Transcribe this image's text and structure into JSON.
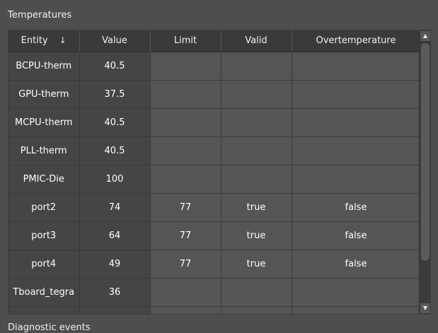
{
  "panel": {
    "title": "Temperatures"
  },
  "table": {
    "columns": [
      "Entity",
      "Value",
      "Limit",
      "Valid",
      "Overtemperature"
    ],
    "rows": [
      {
        "entity": "BCPU-therm",
        "value": "40.5",
        "limit": "",
        "valid": "",
        "over": ""
      },
      {
        "entity": "GPU-therm",
        "value": "37.5",
        "limit": "",
        "valid": "",
        "over": ""
      },
      {
        "entity": "MCPU-therm",
        "value": "40.5",
        "limit": "",
        "valid": "",
        "over": ""
      },
      {
        "entity": "PLL-therm",
        "value": "40.5",
        "limit": "",
        "valid": "",
        "over": ""
      },
      {
        "entity": "PMIC-Die",
        "value": "100",
        "limit": "",
        "valid": "",
        "over": ""
      },
      {
        "entity": "port2",
        "value": "74",
        "limit": "77",
        "valid": "true",
        "over": "false"
      },
      {
        "entity": "port3",
        "value": "64",
        "limit": "77",
        "valid": "true",
        "over": "false"
      },
      {
        "entity": "port4",
        "value": "49",
        "limit": "77",
        "valid": "true",
        "over": "false"
      },
      {
        "entity": "Tboard_tegra",
        "value": "36",
        "limit": "",
        "valid": "",
        "over": ""
      },
      {
        "entity": "",
        "value": "",
        "limit": "",
        "valid": "",
        "over": ""
      }
    ],
    "sort_indicator": "↓"
  },
  "scrollbar": {
    "up_icon": "▲",
    "down_icon": "▼"
  },
  "next_section": {
    "title": "Diagnostic events"
  },
  "colors": {
    "background": "#4e4e4e",
    "header_bg": "#3a3a3a",
    "entity_cell_bg": "#454545",
    "cell_bg": "#555555",
    "text": "#ffffff"
  }
}
